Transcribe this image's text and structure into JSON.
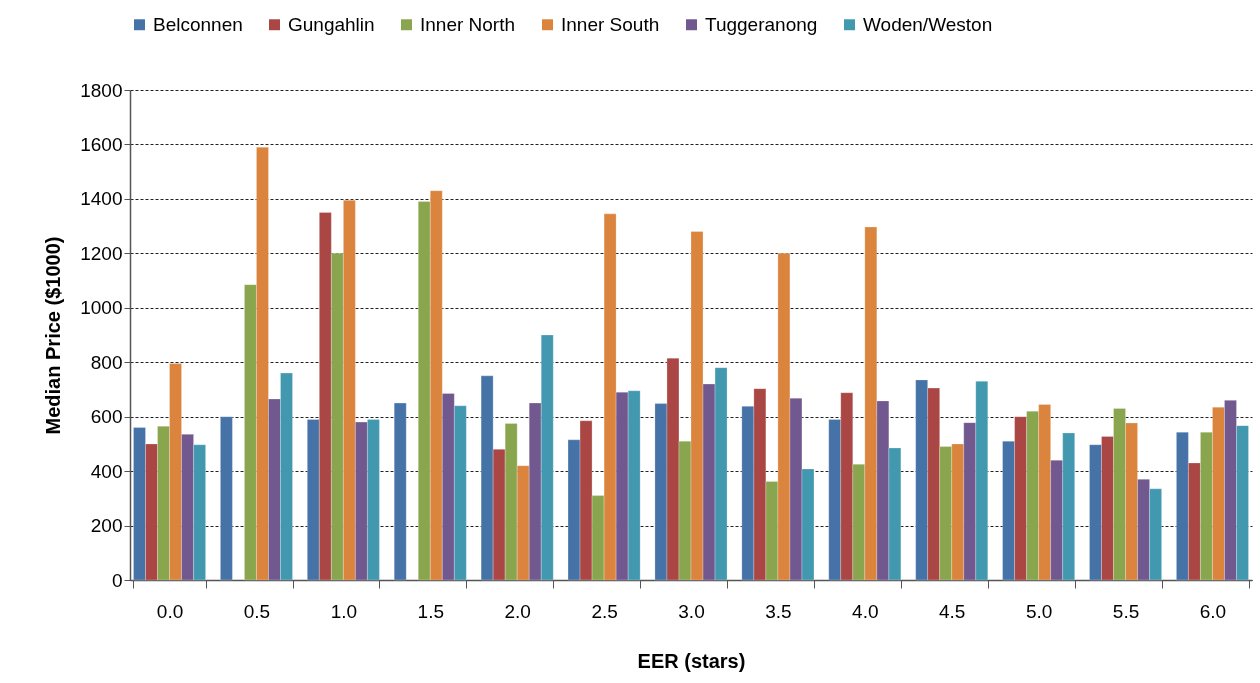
{
  "chart_data": {
    "type": "bar",
    "xlabel": "EER (stars)",
    "ylabel": "Median Price ($1000)",
    "categories": [
      "0.0",
      "0.5",
      "1.0",
      "1.5",
      "2.0",
      "2.5",
      "3.0",
      "3.5",
      "4.0",
      "4.5",
      "5.0",
      "5.5",
      "6.0"
    ],
    "series": [
      {
        "name": "Belconnen",
        "color": "#4572a7",
        "values": [
          560,
          600,
          590,
          650,
          750,
          515,
          648,
          638,
          590,
          735,
          510,
          497,
          543
        ]
      },
      {
        "name": "Gungahlin",
        "color": "#aa4643",
        "values": [
          500,
          null,
          1350,
          null,
          480,
          585,
          815,
          703,
          688,
          705,
          600,
          527,
          430
        ]
      },
      {
        "name": "Inner North",
        "color": "#89a54e",
        "values": [
          565,
          1085,
          1200,
          1390,
          575,
          310,
          510,
          362,
          425,
          490,
          620,
          630,
          543
        ]
      },
      {
        "name": "Inner South",
        "color": "#db843d",
        "values": [
          795,
          1590,
          1395,
          1430,
          420,
          1345,
          1280,
          1200,
          1297,
          500,
          645,
          577,
          635
        ]
      },
      {
        "name": "Tuggeranong",
        "color": "#71588f",
        "values": [
          535,
          665,
          580,
          685,
          650,
          690,
          720,
          668,
          658,
          578,
          440,
          370,
          660
        ]
      },
      {
        "name": "Woden/Weston",
        "color": "#4198af",
        "values": [
          497,
          760,
          590,
          640,
          900,
          695,
          780,
          408,
          485,
          730,
          540,
          335,
          567
        ]
      }
    ],
    "ylim": [
      0,
      1800
    ],
    "yticks": [
      0,
      200,
      400,
      600,
      800,
      1000,
      1200,
      1400,
      1600,
      1800
    ],
    "grid": "y",
    "legend": "top"
  }
}
